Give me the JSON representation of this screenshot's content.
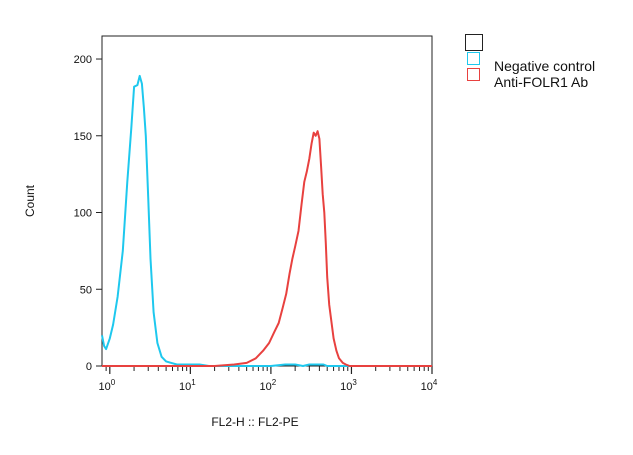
{
  "chart_data": {
    "type": "line",
    "title": "",
    "xlabel": "FL2-H :: FL2-PE",
    "ylabel": "Count",
    "x_scale": "log",
    "xlim": [
      0.8,
      10000
    ],
    "ylim": [
      0,
      215
    ],
    "y_ticks": [
      0,
      50,
      100,
      150,
      200
    ],
    "x_ticks": [
      {
        "value": 1,
        "base": "10",
        "exp": "0"
      },
      {
        "value": 10,
        "base": "10",
        "exp": "1"
      },
      {
        "value": 100,
        "base": "10",
        "exp": "2"
      },
      {
        "value": 1000,
        "base": "10",
        "exp": "3"
      },
      {
        "value": 10000,
        "base": "10",
        "exp": "4"
      }
    ],
    "grid": false,
    "legend_position": "outside top-right",
    "series": [
      {
        "name": "",
        "color": "#ffffff",
        "border": "#222222",
        "x": [],
        "y": []
      },
      {
        "name": "Negative control",
        "color": "#1ec8ee",
        "x": [
          0.8,
          0.85,
          0.9,
          1.0,
          1.1,
          1.25,
          1.45,
          1.65,
          1.85,
          2.0,
          2.2,
          2.35,
          2.5,
          2.65,
          2.8,
          3.0,
          3.2,
          3.5,
          3.9,
          4.4,
          5.0,
          5.8,
          6.8,
          8.0,
          10,
          13,
          17,
          22,
          30,
          40,
          60,
          100,
          150,
          200,
          250,
          300,
          350,
          400,
          450,
          500,
          550,
          700,
          1000,
          2000,
          5000,
          10000
        ],
        "y": [
          20,
          13,
          11,
          18,
          27,
          45,
          75,
          120,
          155,
          182,
          183,
          189,
          184,
          168,
          150,
          110,
          70,
          35,
          15,
          6,
          3,
          2,
          1,
          1,
          1,
          1,
          0,
          0,
          0,
          0,
          0,
          0,
          1,
          1,
          0,
          1,
          1,
          1,
          1,
          0,
          0,
          0,
          0,
          0,
          0,
          0
        ]
      },
      {
        "name": "Anti-FOLR1 Ab",
        "color": "#e8413f",
        "x": [
          0.8,
          10,
          20,
          35,
          50,
          65,
          80,
          95,
          110,
          125,
          140,
          155,
          170,
          185,
          200,
          220,
          240,
          260,
          280,
          300,
          320,
          340,
          360,
          380,
          400,
          420,
          440,
          460,
          480,
          500,
          530,
          560,
          600,
          650,
          700,
          780,
          850,
          950,
          1100,
          1300,
          1600,
          2000,
          3000,
          5000,
          10000
        ],
        "y": [
          0,
          0,
          0,
          1,
          2,
          5,
          10,
          15,
          22,
          28,
          38,
          47,
          60,
          70,
          78,
          88,
          105,
          120,
          127,
          135,
          145,
          152,
          150,
          153,
          148,
          130,
          112,
          100,
          80,
          58,
          40,
          30,
          18,
          10,
          5,
          2,
          1,
          0,
          0,
          0,
          0,
          0,
          0,
          0,
          0
        ]
      }
    ]
  }
}
